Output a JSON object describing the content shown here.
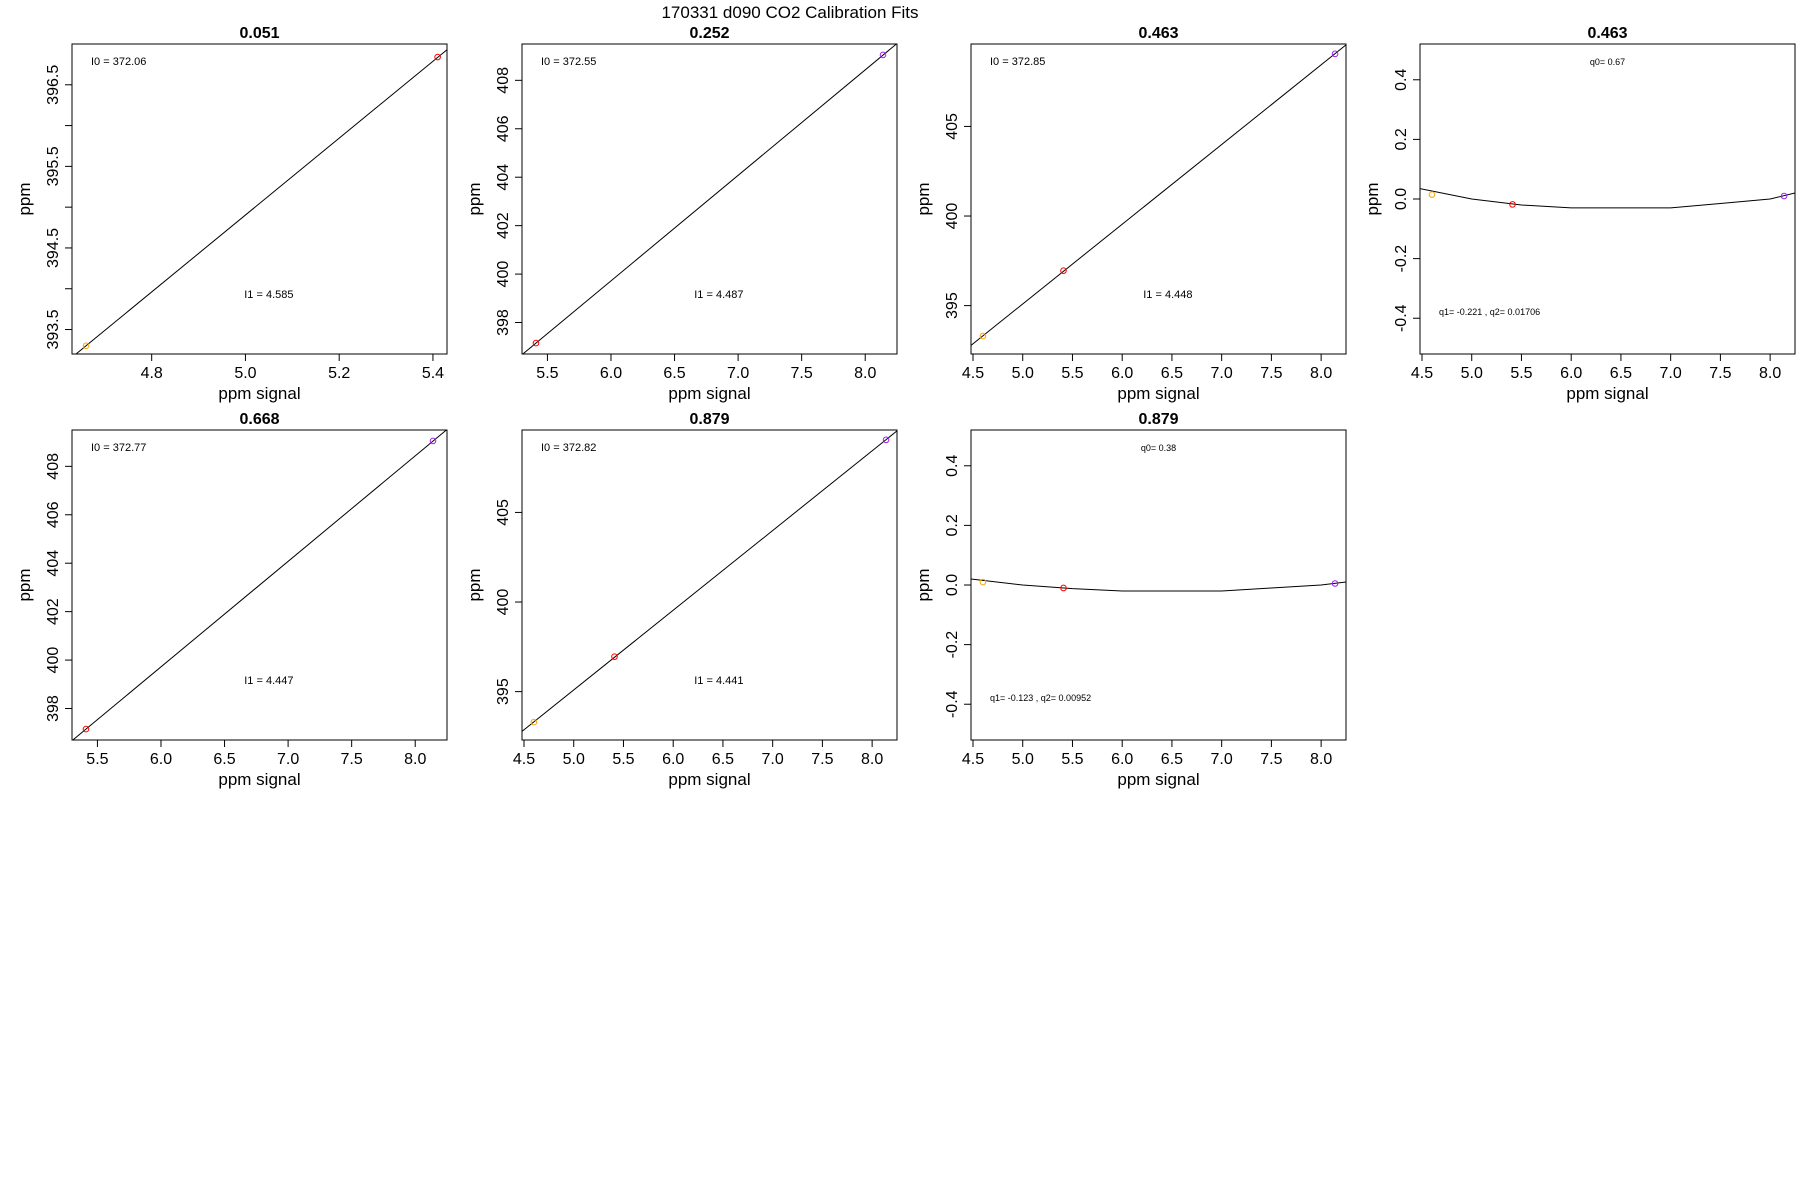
{
  "page_title": "170331   d090   CO2 Calibration Fits",
  "common": {
    "xlabel": "ppm signal",
    "ylabel": "ppm"
  },
  "point_colors": {
    "low": "#ffa500",
    "mid": "#ff0000",
    "high": "#a020f0"
  },
  "chart_data": [
    {
      "type": "scatter",
      "fit": "linear",
      "title": "0.051",
      "xlim": [
        4.63,
        5.43
      ],
      "ylim": [
        393.2,
        397.0
      ],
      "xticks": [
        4.8,
        5.0,
        5.2,
        5.4
      ],
      "yticks": [
        393.5,
        394.5,
        395.5,
        396.5
      ],
      "ytick_minor": [
        394.0,
        395.0,
        396.0
      ],
      "points": [
        {
          "x": 4.66,
          "y": 393.3,
          "color": "low"
        },
        {
          "x": 5.41,
          "y": 396.84,
          "color": "mid"
        }
      ],
      "line": [
        [
          4.63,
          393.16
        ],
        [
          5.43,
          396.93
        ]
      ],
      "top_annotation": "I0 =  372.06",
      "bottom_annotation": "I1 =  4.585"
    },
    {
      "type": "scatter",
      "fit": "linear",
      "title": "0.252",
      "xlim": [
        5.3,
        8.25
      ],
      "ylim": [
        396.7,
        409.5
      ],
      "xticks": [
        5.5,
        6.0,
        6.5,
        7.0,
        7.5,
        8.0
      ],
      "yticks": [
        398,
        400,
        402,
        404,
        406,
        408
      ],
      "ytick_minor": [],
      "points": [
        {
          "x": 5.41,
          "y": 397.15,
          "color": "mid"
        },
        {
          "x": 8.14,
          "y": 409.05,
          "color": "high"
        }
      ],
      "line": [
        [
          5.3,
          396.67
        ],
        [
          8.25,
          409.52
        ]
      ],
      "top_annotation": "I0 =  372.55",
      "bottom_annotation": "I1 =  4.487"
    },
    {
      "type": "scatter",
      "fit": "linear",
      "title": "0.463",
      "xlim": [
        4.48,
        8.25
      ],
      "ylim": [
        392.3,
        409.6
      ],
      "xticks": [
        4.5,
        5.0,
        5.5,
        6.0,
        6.5,
        7.0,
        7.5,
        8.0
      ],
      "yticks": [
        395,
        400,
        405
      ],
      "ytick_minor": [],
      "points": [
        {
          "x": 4.6,
          "y": 393.3,
          "color": "low"
        },
        {
          "x": 5.41,
          "y": 396.95,
          "color": "mid"
        },
        {
          "x": 8.14,
          "y": 409.05,
          "color": "high"
        }
      ],
      "line": [
        [
          4.48,
          392.78
        ],
        [
          8.25,
          409.55
        ]
      ],
      "top_annotation": "I0 =  372.85",
      "bottom_annotation": "I1 =  4.448"
    },
    {
      "type": "scatter",
      "fit": "quadratic",
      "title": "0.463",
      "xlim": [
        4.48,
        8.25
      ],
      "ylim": [
        -0.52,
        0.52
      ],
      "xticks": [
        4.5,
        5.0,
        5.5,
        6.0,
        6.5,
        7.0,
        7.5,
        8.0
      ],
      "yticks": [
        -0.4,
        -0.2,
        0.0,
        0.2,
        0.4
      ],
      "ytick_minor": [],
      "points": [
        {
          "x": 4.6,
          "y": 0.015,
          "color": "low"
        },
        {
          "x": 5.41,
          "y": -0.018,
          "color": "mid"
        },
        {
          "x": 8.14,
          "y": 0.01,
          "color": "high"
        }
      ],
      "line": [
        [
          4.48,
          0.035
        ],
        [
          5.0,
          0.0
        ],
        [
          5.5,
          -0.02
        ],
        [
          6.0,
          -0.03
        ],
        [
          7.0,
          -0.03
        ],
        [
          7.5,
          -0.015
        ],
        [
          8.0,
          0.0
        ],
        [
          8.25,
          0.02
        ]
      ],
      "top_annotation": "q0= 0.67",
      "bottom_annotation": "q1= -0.221 , q2= 0.01706"
    },
    {
      "type": "scatter",
      "fit": "linear",
      "title": "0.668",
      "xlim": [
        5.3,
        8.25
      ],
      "ylim": [
        396.7,
        409.5
      ],
      "xticks": [
        5.5,
        6.0,
        6.5,
        7.0,
        7.5,
        8.0
      ],
      "yticks": [
        398,
        400,
        402,
        404,
        406,
        408
      ],
      "ytick_minor": [],
      "points": [
        {
          "x": 5.41,
          "y": 397.15,
          "color": "mid"
        },
        {
          "x": 8.14,
          "y": 409.05,
          "color": "high"
        }
      ],
      "line": [
        [
          5.3,
          396.67
        ],
        [
          8.25,
          409.52
        ]
      ],
      "top_annotation": "I0 =  372.77",
      "bottom_annotation": "I1 =  4.447"
    },
    {
      "type": "scatter",
      "fit": "linear",
      "title": "0.879",
      "xlim": [
        4.48,
        8.25
      ],
      "ylim": [
        392.3,
        409.6
      ],
      "xticks": [
        4.5,
        5.0,
        5.5,
        6.0,
        6.5,
        7.0,
        7.5,
        8.0
      ],
      "yticks": [
        395,
        400,
        405
      ],
      "ytick_minor": [],
      "points": [
        {
          "x": 4.6,
          "y": 393.3,
          "color": "low"
        },
        {
          "x": 5.41,
          "y": 396.95,
          "color": "mid"
        },
        {
          "x": 8.14,
          "y": 409.05,
          "color": "high"
        }
      ],
      "line": [
        [
          4.48,
          392.78
        ],
        [
          8.25,
          409.55
        ]
      ],
      "top_annotation": "I0 =  372.82",
      "bottom_annotation": "I1 =  4.441"
    },
    {
      "type": "scatter",
      "fit": "quadratic",
      "title": "0.879",
      "xlim": [
        4.48,
        8.25
      ],
      "ylim": [
        -0.52,
        0.52
      ],
      "xticks": [
        4.5,
        5.0,
        5.5,
        6.0,
        6.5,
        7.0,
        7.5,
        8.0
      ],
      "yticks": [
        -0.4,
        -0.2,
        0.0,
        0.2,
        0.4
      ],
      "ytick_minor": [],
      "points": [
        {
          "x": 4.6,
          "y": 0.01,
          "color": "low"
        },
        {
          "x": 5.41,
          "y": -0.01,
          "color": "mid"
        },
        {
          "x": 8.14,
          "y": 0.005,
          "color": "high"
        }
      ],
      "line": [
        [
          4.48,
          0.02
        ],
        [
          5.0,
          0.0
        ],
        [
          5.5,
          -0.012
        ],
        [
          6.0,
          -0.02
        ],
        [
          7.0,
          -0.02
        ],
        [
          7.5,
          -0.01
        ],
        [
          8.0,
          0.0
        ],
        [
          8.25,
          0.01
        ]
      ],
      "top_annotation": "q0= 0.38",
      "bottom_annotation": "q1= -0.123 , q2= 0.00952"
    }
  ]
}
